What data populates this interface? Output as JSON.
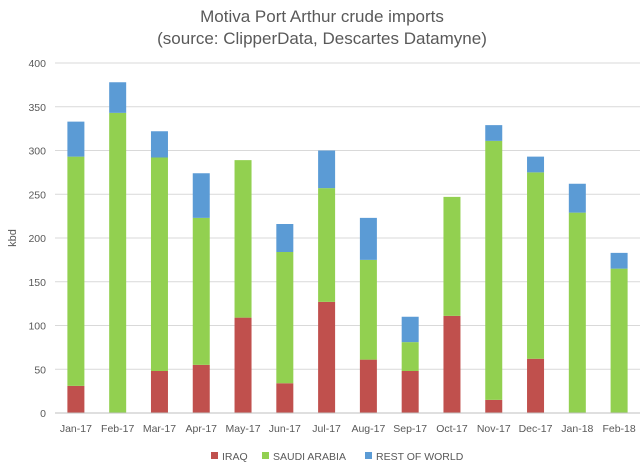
{
  "chart_data": {
    "type": "bar",
    "stacked": true,
    "title": "Motiva Port Arthur crude imports",
    "subtitle": "(source: ClipperData, Descartes Datamyne)",
    "xlabel": "",
    "ylabel": "kbd",
    "ylim": [
      0,
      400
    ],
    "yticks": [
      0,
      50,
      100,
      150,
      200,
      250,
      300,
      350,
      400
    ],
    "grid": true,
    "legend_position": "bottom",
    "categories": [
      "Jan-17",
      "Feb-17",
      "Mar-17",
      "Apr-17",
      "May-17",
      "Jun-17",
      "Jul-17",
      "Aug-17",
      "Sep-17",
      "Oct-17",
      "Nov-17",
      "Dec-17",
      "Jan-18",
      "Feb-18"
    ],
    "series": [
      {
        "name": "IRAQ",
        "color": "#c0504d",
        "values": [
          31,
          0,
          48,
          55,
          109,
          34,
          127,
          61,
          48,
          111,
          15,
          62,
          0,
          0
        ]
      },
      {
        "name": "SAUDI ARABIA",
        "color": "#92d050",
        "values": [
          262,
          343,
          244,
          168,
          180,
          150,
          130,
          114,
          33,
          136,
          296,
          213,
          229,
          165
        ]
      },
      {
        "name": "REST OF WORLD",
        "color": "#5b9bd5",
        "values": [
          40,
          35,
          30,
          51,
          0,
          32,
          43,
          48,
          29,
          0,
          18,
          18,
          33,
          18
        ]
      }
    ]
  }
}
